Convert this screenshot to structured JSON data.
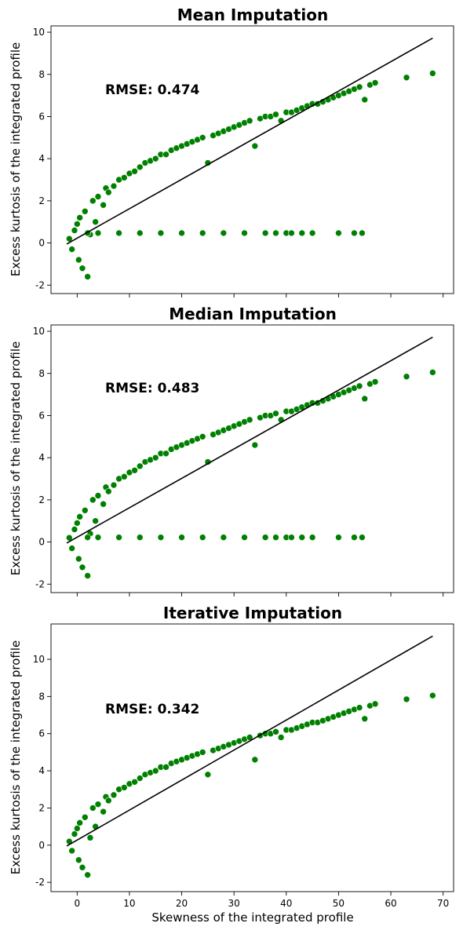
{
  "chart_data": [
    {
      "type": "scatter",
      "title": "Mean Imputation",
      "annotation": "RMSE: 0.474",
      "ylabel": "Excess kurtosis of the integrated profile",
      "xlabel": "",
      "xlim": [
        -5,
        72
      ],
      "ylim": [
        -2.4,
        10.3
      ],
      "xticks": [
        0,
        10,
        20,
        30,
        40,
        50,
        60,
        70
      ],
      "yticks": [
        -2,
        0,
        2,
        4,
        6,
        8,
        10
      ],
      "show_xtick_labels": false,
      "point_color": "#008000",
      "line_color": "#000000",
      "imputed_y": 0.47,
      "fit_line": {
        "x": [
          -2,
          68
        ],
        "y": [
          -0.05,
          9.72
        ]
      },
      "series": [
        {
          "name": "",
          "points": [
            [
              -1.5,
              0.2
            ],
            [
              -1,
              -0.3
            ],
            [
              -0.5,
              0.6
            ],
            [
              0,
              0.9
            ],
            [
              0.3,
              -0.8
            ],
            [
              0.5,
              1.2
            ],
            [
              1,
              -1.2
            ],
            [
              1.5,
              1.5
            ],
            [
              2,
              -1.6
            ],
            [
              2.5,
              0.4
            ],
            [
              3,
              2.0
            ],
            [
              3.5,
              1.0
            ],
            [
              4,
              2.2
            ],
            [
              5,
              1.8
            ],
            [
              5.5,
              2.6
            ],
            [
              6,
              2.4
            ],
            [
              7,
              2.7
            ],
            [
              8,
              3.0
            ],
            [
              9,
              3.1
            ],
            [
              10,
              3.3
            ],
            [
              11,
              3.4
            ],
            [
              12,
              3.6
            ],
            [
              13,
              3.8
            ],
            [
              14,
              3.9
            ],
            [
              15,
              4.0
            ],
            [
              16,
              4.2
            ],
            [
              17,
              4.2
            ],
            [
              18,
              4.4
            ],
            [
              19,
              4.5
            ],
            [
              20,
              4.6
            ],
            [
              21,
              4.7
            ],
            [
              22,
              4.8
            ],
            [
              23,
              4.9
            ],
            [
              24,
              5.0
            ],
            [
              25,
              3.8
            ],
            [
              26,
              5.1
            ],
            [
              27,
              5.2
            ],
            [
              28,
              5.3
            ],
            [
              29,
              5.4
            ],
            [
              30,
              5.5
            ],
            [
              31,
              5.6
            ],
            [
              32,
              5.7
            ],
            [
              33,
              5.8
            ],
            [
              34,
              4.6
            ],
            [
              35,
              5.9
            ],
            [
              36,
              6.0
            ],
            [
              37,
              6.0
            ],
            [
              38,
              6.1
            ],
            [
              39,
              5.8
            ],
            [
              40,
              6.2
            ],
            [
              41,
              6.2
            ],
            [
              42,
              6.3
            ],
            [
              43,
              6.4
            ],
            [
              44,
              6.5
            ],
            [
              45,
              6.6
            ],
            [
              46,
              6.6
            ],
            [
              47,
              6.7
            ],
            [
              48,
              6.8
            ],
            [
              49,
              6.9
            ],
            [
              50,
              7.0
            ],
            [
              51,
              7.1
            ],
            [
              52,
              7.2
            ],
            [
              53,
              7.3
            ],
            [
              54,
              7.4
            ],
            [
              55,
              6.8
            ],
            [
              56,
              7.5
            ],
            [
              57,
              7.6
            ],
            [
              63,
              7.85
            ],
            [
              68,
              8.05
            ]
          ]
        },
        {
          "name": "",
          "points": [
            [
              2,
              0.47
            ],
            [
              4,
              0.47
            ],
            [
              8,
              0.47
            ],
            [
              12,
              0.47
            ],
            [
              16,
              0.47
            ],
            [
              20,
              0.47
            ],
            [
              24,
              0.47
            ],
            [
              28,
              0.47
            ],
            [
              32,
              0.47
            ],
            [
              36,
              0.47
            ],
            [
              38,
              0.47
            ],
            [
              40,
              0.47
            ],
            [
              41,
              0.47
            ],
            [
              43,
              0.47
            ],
            [
              45,
              0.47
            ],
            [
              50,
              0.47
            ],
            [
              53,
              0.47
            ],
            [
              54.5,
              0.47
            ]
          ]
        }
      ]
    },
    {
      "type": "scatter",
      "title": "Median Imputation",
      "annotation": "RMSE: 0.483",
      "ylabel": "Excess kurtosis of the integrated profile",
      "xlabel": "",
      "xlim": [
        -5,
        72
      ],
      "ylim": [
        -2.4,
        10.3
      ],
      "xticks": [
        0,
        10,
        20,
        30,
        40,
        50,
        60,
        70
      ],
      "yticks": [
        -2,
        0,
        2,
        4,
        6,
        8,
        10
      ],
      "show_xtick_labels": false,
      "point_color": "#008000",
      "line_color": "#000000",
      "imputed_y": 0.22,
      "fit_line": {
        "x": [
          -2,
          68
        ],
        "y": [
          -0.05,
          9.72
        ]
      },
      "series": [
        {
          "name": "",
          "points": [
            [
              -1.5,
              0.2
            ],
            [
              -1,
              -0.3
            ],
            [
              -0.5,
              0.6
            ],
            [
              0,
              0.9
            ],
            [
              0.3,
              -0.8
            ],
            [
              0.5,
              1.2
            ],
            [
              1,
              -1.2
            ],
            [
              1.5,
              1.5
            ],
            [
              2,
              -1.6
            ],
            [
              2.5,
              0.4
            ],
            [
              3,
              2.0
            ],
            [
              3.5,
              1.0
            ],
            [
              4,
              2.2
            ],
            [
              5,
              1.8
            ],
            [
              5.5,
              2.6
            ],
            [
              6,
              2.4
            ],
            [
              7,
              2.7
            ],
            [
              8,
              3.0
            ],
            [
              9,
              3.1
            ],
            [
              10,
              3.3
            ],
            [
              11,
              3.4
            ],
            [
              12,
              3.6
            ],
            [
              13,
              3.8
            ],
            [
              14,
              3.9
            ],
            [
              15,
              4.0
            ],
            [
              16,
              4.2
            ],
            [
              17,
              4.2
            ],
            [
              18,
              4.4
            ],
            [
              19,
              4.5
            ],
            [
              20,
              4.6
            ],
            [
              21,
              4.7
            ],
            [
              22,
              4.8
            ],
            [
              23,
              4.9
            ],
            [
              24,
              5.0
            ],
            [
              25,
              3.8
            ],
            [
              26,
              5.1
            ],
            [
              27,
              5.2
            ],
            [
              28,
              5.3
            ],
            [
              29,
              5.4
            ],
            [
              30,
              5.5
            ],
            [
              31,
              5.6
            ],
            [
              32,
              5.7
            ],
            [
              33,
              5.8
            ],
            [
              34,
              4.6
            ],
            [
              35,
              5.9
            ],
            [
              36,
              6.0
            ],
            [
              37,
              6.0
            ],
            [
              38,
              6.1
            ],
            [
              39,
              5.8
            ],
            [
              40,
              6.2
            ],
            [
              41,
              6.2
            ],
            [
              42,
              6.3
            ],
            [
              43,
              6.4
            ],
            [
              44,
              6.5
            ],
            [
              45,
              6.6
            ],
            [
              46,
              6.6
            ],
            [
              47,
              6.7
            ],
            [
              48,
              6.8
            ],
            [
              49,
              6.9
            ],
            [
              50,
              7.0
            ],
            [
              51,
              7.1
            ],
            [
              52,
              7.2
            ],
            [
              53,
              7.3
            ],
            [
              54,
              7.4
            ],
            [
              55,
              6.8
            ],
            [
              56,
              7.5
            ],
            [
              57,
              7.6
            ],
            [
              63,
              7.85
            ],
            [
              68,
              8.05
            ]
          ]
        },
        {
          "name": "",
          "points": [
            [
              2,
              0.22
            ],
            [
              4,
              0.22
            ],
            [
              8,
              0.22
            ],
            [
              12,
              0.22
            ],
            [
              16,
              0.22
            ],
            [
              20,
              0.22
            ],
            [
              24,
              0.22
            ],
            [
              28,
              0.22
            ],
            [
              32,
              0.22
            ],
            [
              36,
              0.22
            ],
            [
              38,
              0.22
            ],
            [
              40,
              0.22
            ],
            [
              41,
              0.22
            ],
            [
              43,
              0.22
            ],
            [
              45,
              0.22
            ],
            [
              50,
              0.22
            ],
            [
              53,
              0.22
            ],
            [
              54.5,
              0.22
            ]
          ]
        }
      ]
    },
    {
      "type": "scatter",
      "title": "Iterative Imputation",
      "annotation": "RMSE: 0.342",
      "ylabel": "Excess kurtosis of the integrated profile",
      "xlabel": "Skewness of the integrated profile",
      "xlim": [
        -5,
        72
      ],
      "ylim": [
        -2.5,
        11.9
      ],
      "xticks": [
        0,
        10,
        20,
        30,
        40,
        50,
        60,
        70
      ],
      "yticks": [
        -2,
        0,
        2,
        4,
        6,
        8,
        10
      ],
      "show_xtick_labels": true,
      "point_color": "#008000",
      "line_color": "#000000",
      "imputed_y": null,
      "fit_line": {
        "x": [
          -2,
          68
        ],
        "y": [
          -0.05,
          11.25
        ]
      },
      "series": [
        {
          "name": "",
          "points": [
            [
              -1.5,
              0.2
            ],
            [
              -1,
              -0.3
            ],
            [
              -0.5,
              0.6
            ],
            [
              0,
              0.9
            ],
            [
              0.3,
              -0.8
            ],
            [
              0.5,
              1.2
            ],
            [
              1,
              -1.2
            ],
            [
              1.5,
              1.5
            ],
            [
              2,
              -1.6
            ],
            [
              2.5,
              0.4
            ],
            [
              3,
              2.0
            ],
            [
              3.5,
              1.0
            ],
            [
              4,
              2.2
            ],
            [
              5,
              1.8
            ],
            [
              5.5,
              2.6
            ],
            [
              6,
              2.4
            ],
            [
              7,
              2.7
            ],
            [
              8,
              3.0
            ],
            [
              9,
              3.1
            ],
            [
              10,
              3.3
            ],
            [
              11,
              3.4
            ],
            [
              12,
              3.6
            ],
            [
              13,
              3.8
            ],
            [
              14,
              3.9
            ],
            [
              15,
              4.0
            ],
            [
              16,
              4.2
            ],
            [
              17,
              4.2
            ],
            [
              18,
              4.4
            ],
            [
              19,
              4.5
            ],
            [
              20,
              4.6
            ],
            [
              21,
              4.7
            ],
            [
              22,
              4.8
            ],
            [
              23,
              4.9
            ],
            [
              24,
              5.0
            ],
            [
              25,
              3.8
            ],
            [
              26,
              5.1
            ],
            [
              27,
              5.2
            ],
            [
              28,
              5.3
            ],
            [
              29,
              5.4
            ],
            [
              30,
              5.5
            ],
            [
              31,
              5.6
            ],
            [
              32,
              5.7
            ],
            [
              33,
              5.8
            ],
            [
              34,
              4.6
            ],
            [
              35,
              5.9
            ],
            [
              36,
              6.0
            ],
            [
              37,
              6.0
            ],
            [
              38,
              6.1
            ],
            [
              39,
              5.8
            ],
            [
              40,
              6.2
            ],
            [
              41,
              6.2
            ],
            [
              42,
              6.3
            ],
            [
              43,
              6.4
            ],
            [
              44,
              6.5
            ],
            [
              45,
              6.6
            ],
            [
              46,
              6.6
            ],
            [
              47,
              6.7
            ],
            [
              48,
              6.8
            ],
            [
              49,
              6.9
            ],
            [
              50,
              7.0
            ],
            [
              51,
              7.1
            ],
            [
              52,
              7.2
            ],
            [
              53,
              7.3
            ],
            [
              54,
              7.4
            ],
            [
              55,
              6.8
            ],
            [
              56,
              7.5
            ],
            [
              57,
              7.6
            ],
            [
              63,
              7.85
            ],
            [
              68,
              8.05
            ]
          ]
        }
      ]
    }
  ]
}
